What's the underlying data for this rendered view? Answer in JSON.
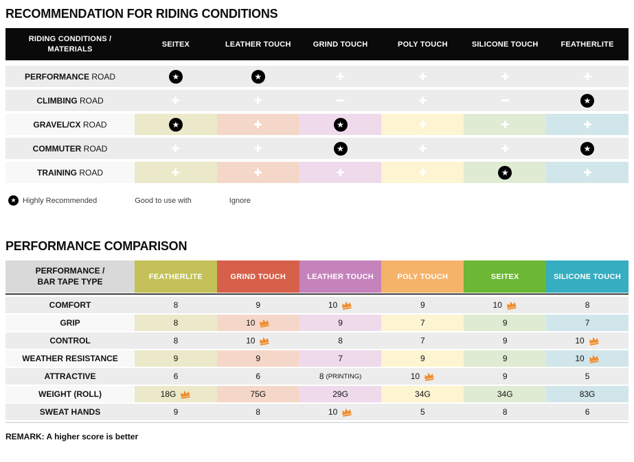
{
  "colors": {
    "icon_blue": "#1c98d4",
    "icon_orange": "#ef8a1f",
    "icon_black": "#000000",
    "crown_orange": "#ef8b28",
    "header_bar_black": "#0a0a0a",
    "row_gray": "#ececec",
    "tinted_label_bg": "#f8f8f8",
    "t2_label_header_bg": "#d9d9d9"
  },
  "icons": {
    "star": "star-in-black-circle",
    "plus": "plus-in-blue-circle",
    "minus": "minus-in-orange-circle",
    "crown": "orange-crown-best-score"
  },
  "tints": [
    "#ebe9c9",
    "#f5d7c9",
    "#efdaec",
    "#fdf4d2",
    "#dfecd3",
    "#d1e6ea"
  ],
  "table1": {
    "title": "RECOMMENDATION FOR RIDING CONDITIONS",
    "header_label_line1": "RIDING CONDITIONS /",
    "header_label_line2": "MATERIALS",
    "columns": [
      "SEITEX",
      "LEATHER TOUCH",
      "GRIND TOUCH",
      "POLY TOUCH",
      "SILICONE TOUCH",
      "FEATHERLITE"
    ],
    "rows": [
      {
        "label_bold": "PERFORMANCE",
        "label_rest": " ROAD",
        "tinted": false,
        "cells": [
          "star",
          "star",
          "plus",
          "plus",
          "plus",
          "plus"
        ]
      },
      {
        "label_bold": "CLIMBING",
        "label_rest": " ROAD",
        "tinted": false,
        "cells": [
          "plus",
          "plus",
          "minus",
          "plus",
          "minus",
          "star"
        ]
      },
      {
        "label_bold": "GRAVEL/CX",
        "label_rest": " ROAD",
        "tinted": true,
        "cells": [
          "star",
          "plus",
          "star",
          "plus",
          "plus",
          "plus"
        ]
      },
      {
        "label_bold": "COMMUTER",
        "label_rest": " ROAD",
        "tinted": false,
        "cells": [
          "plus",
          "plus",
          "star",
          "plus",
          "plus",
          "star"
        ]
      },
      {
        "label_bold": "TRAINING",
        "label_rest": " ROAD",
        "tinted": true,
        "cells": [
          "plus",
          "plus",
          "plus",
          "plus",
          "star",
          "plus"
        ]
      }
    ]
  },
  "legend": {
    "items": [
      {
        "icon": "star",
        "label": "Highly Recommended"
      },
      {
        "icon": "plus",
        "label": "Good to use with"
      },
      {
        "icon": "minus",
        "label": "Ignore"
      }
    ]
  },
  "table2": {
    "title": "PERFORMANCE COMPARISON",
    "header_label_line1": "PERFORMANCE /",
    "header_label_line2": "BAR TAPE TYPE",
    "columns": [
      {
        "label": "FEATHERLITE",
        "color": "#c3c157"
      },
      {
        "label": "GRIND TOUCH",
        "color": "#d7604b"
      },
      {
        "label": "LEATHER TOUCH",
        "color": "#c583bc"
      },
      {
        "label": "POLY TOUCH",
        "color": "#f5b269"
      },
      {
        "label": "SEITEX",
        "color": "#6cb733"
      },
      {
        "label": "SILICONE TOUCH",
        "color": "#36adc0"
      }
    ],
    "rows": [
      {
        "label": "COMFORT",
        "tinted": false,
        "cells": [
          {
            "v": "8"
          },
          {
            "v": "9"
          },
          {
            "v": "10",
            "crown": true
          },
          {
            "v": "9"
          },
          {
            "v": "10",
            "crown": true
          },
          {
            "v": "8"
          }
        ]
      },
      {
        "label": "GRIP",
        "tinted": true,
        "cells": [
          {
            "v": "8"
          },
          {
            "v": "10",
            "crown": true
          },
          {
            "v": "9"
          },
          {
            "v": "7"
          },
          {
            "v": "9"
          },
          {
            "v": "7"
          }
        ]
      },
      {
        "label": "CONTROL",
        "tinted": false,
        "cells": [
          {
            "v": "8"
          },
          {
            "v": "10",
            "crown": true
          },
          {
            "v": "8"
          },
          {
            "v": "7"
          },
          {
            "v": "9"
          },
          {
            "v": "10",
            "crown": true
          }
        ]
      },
      {
        "label": "WEATHER RESISTANCE",
        "tinted": true,
        "cells": [
          {
            "v": "9"
          },
          {
            "v": "9"
          },
          {
            "v": "7"
          },
          {
            "v": "9"
          },
          {
            "v": "9"
          },
          {
            "v": "10",
            "crown": true
          }
        ]
      },
      {
        "label": "ATTRACTIVE",
        "tinted": false,
        "cells": [
          {
            "v": "6"
          },
          {
            "v": "6"
          },
          {
            "v": "8",
            "suffix": "(PRINTING)"
          },
          {
            "v": "10",
            "crown": true
          },
          {
            "v": "9"
          },
          {
            "v": "5"
          }
        ]
      },
      {
        "label": "WEIGHT (ROLL)",
        "tinted": true,
        "cells": [
          {
            "v": "18G",
            "crown": true
          },
          {
            "v": "75G"
          },
          {
            "v": "29G"
          },
          {
            "v": "34G"
          },
          {
            "v": "34G"
          },
          {
            "v": "83G"
          }
        ]
      },
      {
        "label": "SWEAT HANDS",
        "tinted": false,
        "cells": [
          {
            "v": "9"
          },
          {
            "v": "8"
          },
          {
            "v": "10",
            "crown": true
          },
          {
            "v": "5"
          },
          {
            "v": "8"
          },
          {
            "v": "6"
          }
        ]
      }
    ],
    "remark": "REMARK: A higher score is better"
  }
}
